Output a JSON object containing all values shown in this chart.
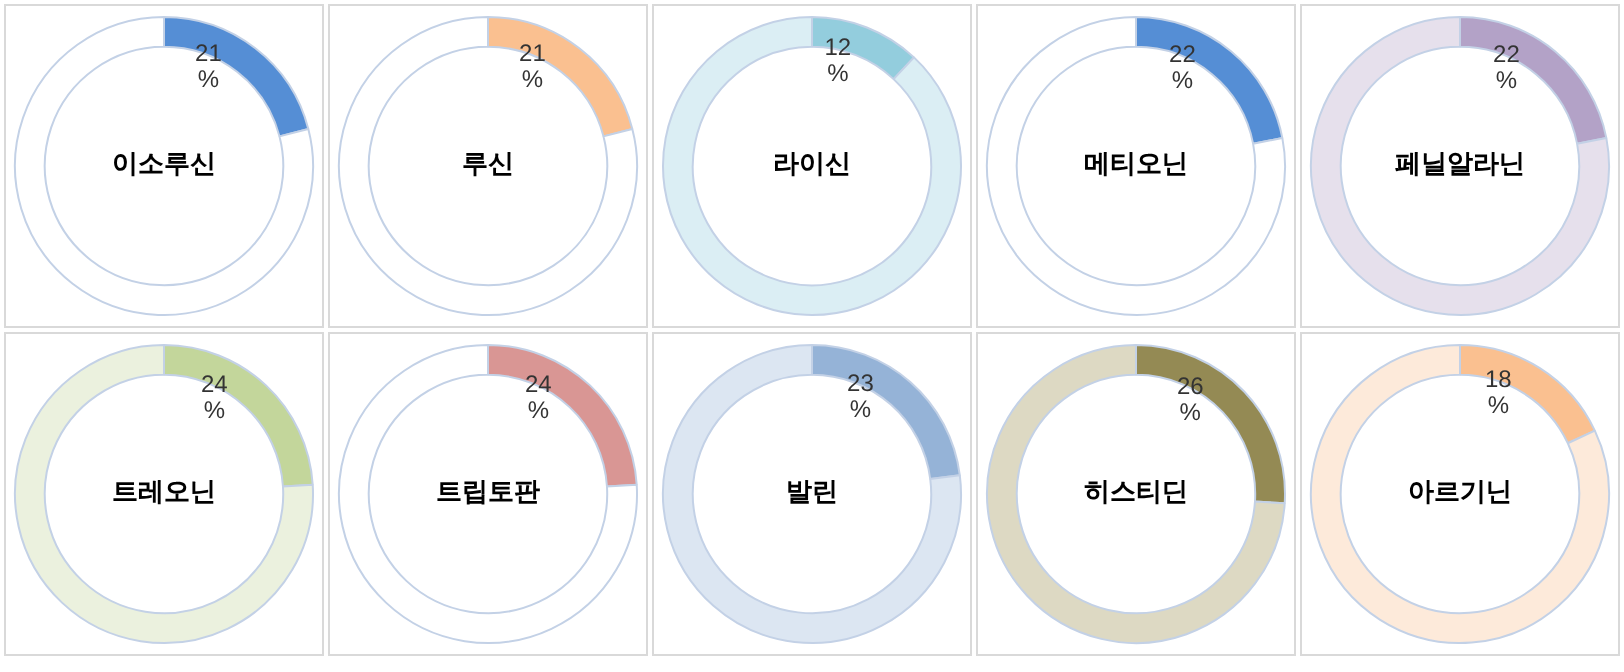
{
  "chart_data": [
    {
      "type": "donut",
      "title": "이소루신",
      "categories": [
        null,
        null
      ],
      "values": [
        21,
        79
      ],
      "colors": [
        "#558ed5",
        "#ffffff"
      ],
      "value_labels": [
        "21 %",
        null
      ]
    },
    {
      "type": "donut",
      "title": "루신",
      "categories": [
        null,
        null
      ],
      "values": [
        21,
        79
      ],
      "colors": [
        "#fac090",
        "#ffffff"
      ],
      "value_labels": [
        "21 %",
        null
      ]
    },
    {
      "type": "donut",
      "title": "라이신",
      "categories": [
        null,
        null
      ],
      "values": [
        12,
        88
      ],
      "colors": [
        "#93cddd",
        "#dbeef4"
      ],
      "value_labels": [
        "12 %",
        null
      ]
    },
    {
      "type": "donut",
      "title": "메티오닌",
      "categories": [
        null,
        null
      ],
      "values": [
        22,
        78
      ],
      "colors": [
        "#558ed5",
        "#ffffff"
      ],
      "value_labels": [
        "22 %",
        null
      ]
    },
    {
      "type": "donut",
      "title": "페닐알라닌",
      "categories": [
        null,
        null
      ],
      "values": [
        22,
        78
      ],
      "colors": [
        "#b3a2c7",
        "#e6e0ec"
      ],
      "value_labels": [
        "22 %",
        null
      ]
    },
    {
      "type": "donut",
      "title": "트레오닌",
      "categories": [
        null,
        null
      ],
      "values": [
        24,
        76
      ],
      "colors": [
        "#c3d69b",
        "#ebf1de"
      ],
      "value_labels": [
        "24 %",
        null
      ]
    },
    {
      "type": "donut",
      "title": "트립토판",
      "categories": [
        null,
        null
      ],
      "values": [
        24,
        76
      ],
      "colors": [
        "#d99694",
        "#ffffff"
      ],
      "value_labels": [
        "24 %",
        null
      ]
    },
    {
      "type": "donut",
      "title": "발린",
      "categories": [
        null,
        null
      ],
      "values": [
        23,
        77
      ],
      "colors": [
        "#95b3d7",
        "#dce6f2"
      ],
      "value_labels": [
        "23 %",
        null
      ]
    },
    {
      "type": "donut",
      "title": "히스티딘",
      "categories": [
        null,
        null
      ],
      "values": [
        26,
        74
      ],
      "colors": [
        "#948a54",
        "#ddd9c3"
      ],
      "value_labels": [
        "26 %",
        null
      ]
    },
    {
      "type": "donut",
      "title": "아르기닌",
      "categories": [
        null,
        null
      ],
      "values": [
        18,
        82
      ],
      "colors": [
        "#fac090",
        "#fdeada"
      ],
      "value_labels": [
        "18 %",
        null
      ]
    }
  ]
}
